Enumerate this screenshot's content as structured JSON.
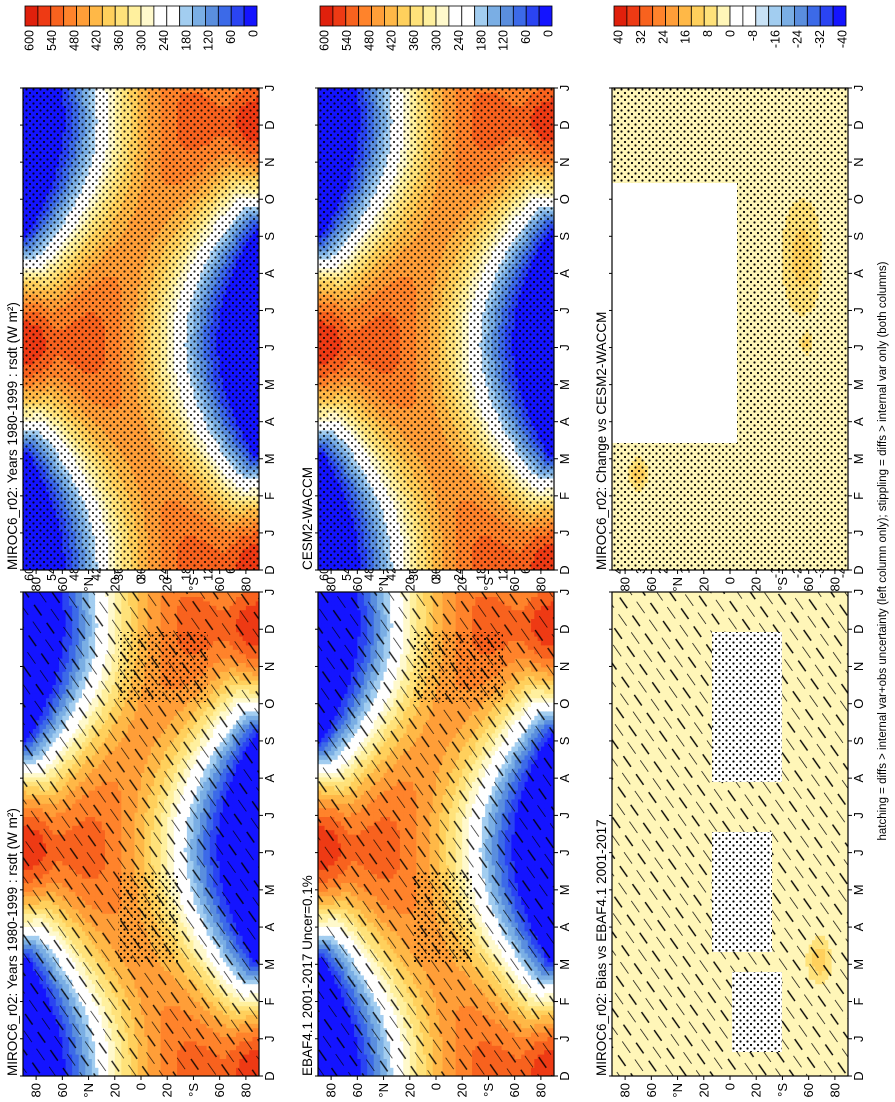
{
  "figure": {
    "footnote": "hatching = diffs > internal var+obs uncertainty (left column only); stippling = diffs > internal var only (both columns)"
  },
  "palettes": {
    "sequential": [
      "#1414ff",
      "#2a44f2",
      "#3c6ae8",
      "#5a8ede",
      "#7aaee4",
      "#a2cdf0",
      "#ffffff",
      "#ffffff",
      "#fff9cc",
      "#fff09e",
      "#ffe27a",
      "#ffd05c",
      "#ffb847",
      "#ff9e38",
      "#ff832b",
      "#f8621e",
      "#ee3a14",
      "#e0200c"
    ],
    "diverging": [
      "#1414ff",
      "#2a44f2",
      "#3c6ae8",
      "#5a8ede",
      "#7aaee4",
      "#a2cdf0",
      "#c8e2f6",
      "#ffffff",
      "#ffffff",
      "#fff6b8",
      "#ffe27a",
      "#ffd05c",
      "#ffb847",
      "#ff9e38",
      "#ff832b",
      "#f8621e",
      "#ee3a14",
      "#e0200c"
    ]
  },
  "chart_data": [
    {
      "type": "heatmap",
      "title": "MIROC6_r02: Years 1980-1999 : rsdt (W m²)",
      "x": [
        "D",
        "J",
        "F",
        "M",
        "A",
        "M",
        "J",
        "J",
        "A",
        "S",
        "O",
        "N",
        "D",
        "J"
      ],
      "y": [
        "80",
        "60",
        "°N",
        "20",
        "0",
        "20",
        "°S",
        "60",
        "80"
      ],
      "colorbar": [
        "600",
        "540",
        "480",
        "420",
        "360",
        "300",
        "240",
        "180",
        "120",
        "60",
        "0"
      ],
      "range": [
        0,
        600
      ],
      "palette": "sequential",
      "field": "insolation",
      "overlay": "hatch"
    },
    {
      "type": "heatmap",
      "title": "MIROC6_r02: Years 1980-1999 : rsdt (W m²)",
      "x": [
        "D",
        "J",
        "F",
        "M",
        "A",
        "M",
        "J",
        "J",
        "A",
        "S",
        "O",
        "N",
        "D",
        "J"
      ],
      "y": [
        "80",
        "60",
        "°N",
        "20",
        "0",
        "20",
        "°S",
        "60",
        "80"
      ],
      "colorbar": [
        "600",
        "540",
        "480",
        "420",
        "360",
        "300",
        "240",
        "180",
        "120",
        "60",
        "0"
      ],
      "range": [
        0,
        600
      ],
      "palette": "sequential",
      "field": "insolation",
      "overlay": "stipple"
    },
    {
      "type": "heatmap",
      "title": "EBAF4.1 2001-2017 Uncer=0.1%",
      "x": [
        "D",
        "J",
        "F",
        "M",
        "A",
        "M",
        "J",
        "J",
        "A",
        "S",
        "O",
        "N",
        "D",
        "J"
      ],
      "y": [
        "80",
        "60",
        "°N",
        "20",
        "0",
        "20",
        "°S",
        "60",
        "80"
      ],
      "colorbar": [
        "600",
        "540",
        "480",
        "420",
        "360",
        "300",
        "240",
        "180",
        "120",
        "60",
        "0"
      ],
      "range": [
        0,
        600
      ],
      "palette": "sequential",
      "field": "insolation",
      "overlay": "hatch"
    },
    {
      "type": "heatmap",
      "title": "CESM2-WACCM",
      "x": [
        "D",
        "J",
        "F",
        "M",
        "A",
        "M",
        "J",
        "J",
        "A",
        "S",
        "O",
        "N",
        "D",
        "J"
      ],
      "y": [
        "80",
        "60",
        "°N",
        "20",
        "0",
        "20",
        "°S",
        "60",
        "80"
      ],
      "colorbar": [
        "600",
        "540",
        "480",
        "420",
        "360",
        "300",
        "240",
        "180",
        "120",
        "60",
        "0"
      ],
      "range": [
        0,
        600
      ],
      "palette": "sequential",
      "field": "insolation",
      "overlay": "stipple"
    },
    {
      "type": "heatmap",
      "title": "MIROC6_r02: Bias vs EBAF4.1 2001-2017",
      "x": [
        "D",
        "J",
        "F",
        "M",
        "A",
        "M",
        "J",
        "J",
        "A",
        "S",
        "O",
        "N",
        "D",
        "J"
      ],
      "y": [
        "80",
        "60",
        "°N",
        "20",
        "0",
        "20",
        "°S",
        "60",
        "80"
      ],
      "colorbar": [
        "40",
        "32",
        "24",
        "16",
        "8",
        "0",
        "-8",
        "-16",
        "-24",
        "-32",
        "-40"
      ],
      "range": [
        -40,
        40
      ],
      "palette": "diverging",
      "field": "bias",
      "overlay": "bias"
    },
    {
      "type": "heatmap",
      "title": "MIROC6_r02: Change vs CESM2-WACCM",
      "x": [
        "D",
        "J",
        "F",
        "M",
        "A",
        "M",
        "J",
        "J",
        "A",
        "S",
        "O",
        "N",
        "D",
        "J"
      ],
      "y": [
        "80",
        "60",
        "°N",
        "20",
        "0",
        "20",
        "°S",
        "60",
        "80"
      ],
      "colorbar": [
        "40",
        "32",
        "24",
        "16",
        "8",
        "0",
        "-8",
        "-16",
        "-24",
        "-32",
        "-40"
      ],
      "range": [
        -40,
        40
      ],
      "palette": "diverging",
      "field": "change",
      "overlay": "change"
    }
  ]
}
